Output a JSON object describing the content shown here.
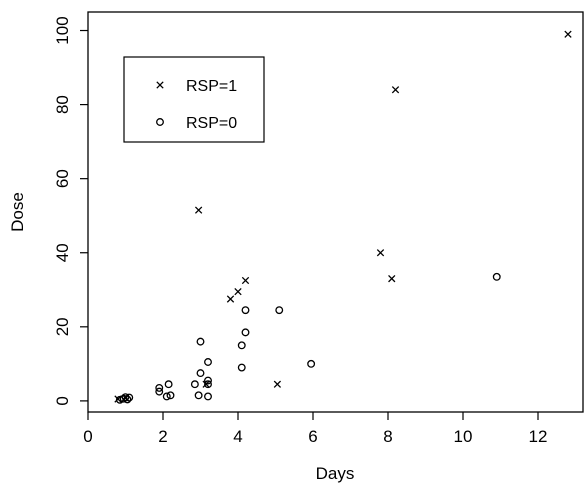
{
  "chart_data": {
    "type": "scatter",
    "xlabel": "Days",
    "ylabel": "Dose",
    "xlim": [
      0,
      13.2
    ],
    "ylim": [
      -3,
      105
    ],
    "x_ticks": [
      0,
      2,
      4,
      6,
      8,
      10,
      12
    ],
    "y_ticks": [
      0,
      20,
      40,
      60,
      80,
      100
    ],
    "legend_position": "top-left",
    "series": [
      {
        "name": "RSP=1",
        "marker": "cross",
        "points": [
          {
            "x": 0.8,
            "y": 0.5
          },
          {
            "x": 1.0,
            "y": 0.8
          },
          {
            "x": 2.95,
            "y": 51.5
          },
          {
            "x": 3.15,
            "y": 4.5
          },
          {
            "x": 3.8,
            "y": 27.5
          },
          {
            "x": 4.0,
            "y": 29.5
          },
          {
            "x": 4.2,
            "y": 32.5
          },
          {
            "x": 5.05,
            "y": 4.5
          },
          {
            "x": 7.8,
            "y": 40.0
          },
          {
            "x": 8.1,
            "y": 33.0
          },
          {
            "x": 8.2,
            "y": 84.0
          },
          {
            "x": 12.8,
            "y": 99.0
          }
        ]
      },
      {
        "name": "RSP=0",
        "marker": "circle",
        "points": [
          {
            "x": 0.85,
            "y": 0.3
          },
          {
            "x": 0.95,
            "y": 0.6
          },
          {
            "x": 1.0,
            "y": 1.0
          },
          {
            "x": 1.05,
            "y": 0.4
          },
          {
            "x": 1.1,
            "y": 0.9
          },
          {
            "x": 1.9,
            "y": 2.5
          },
          {
            "x": 1.9,
            "y": 3.5
          },
          {
            "x": 2.1,
            "y": 1.2
          },
          {
            "x": 2.15,
            "y": 4.5
          },
          {
            "x": 2.2,
            "y": 1.5
          },
          {
            "x": 2.85,
            "y": 4.5
          },
          {
            "x": 2.95,
            "y": 1.5
          },
          {
            "x": 3.0,
            "y": 7.5
          },
          {
            "x": 3.0,
            "y": 16.0
          },
          {
            "x": 3.2,
            "y": 1.2
          },
          {
            "x": 3.2,
            "y": 4.5
          },
          {
            "x": 3.2,
            "y": 5.5
          },
          {
            "x": 3.2,
            "y": 10.5
          },
          {
            "x": 4.1,
            "y": 9.0
          },
          {
            "x": 4.1,
            "y": 15.0
          },
          {
            "x": 4.2,
            "y": 18.5
          },
          {
            "x": 4.2,
            "y": 24.5
          },
          {
            "x": 5.1,
            "y": 24.5
          },
          {
            "x": 5.95,
            "y": 10.0
          },
          {
            "x": 10.9,
            "y": 33.5
          }
        ]
      }
    ]
  }
}
